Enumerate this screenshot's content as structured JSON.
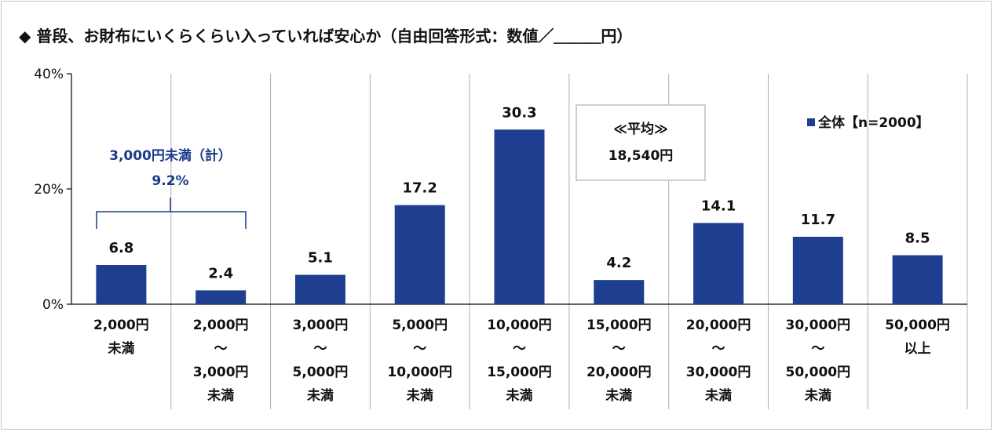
{
  "chart_data": {
    "type": "bar",
    "title": "◆ 普段、お財布にいくらくらい入っていれば安心か（自由回答形式：数値／＿＿＿円）",
    "categories": [
      [
        "2,000円",
        "未満"
      ],
      [
        "2,000円",
        "～",
        "3,000円",
        "未満"
      ],
      [
        "3,000円",
        "～",
        "5,000円",
        "未満"
      ],
      [
        "5,000円",
        "～",
        "10,000円",
        "未満"
      ],
      [
        "10,000円",
        "～",
        "15,000円",
        "未満"
      ],
      [
        "15,000円",
        "～",
        "20,000円",
        "未満"
      ],
      [
        "20,000円",
        "～",
        "30,000円",
        "未満"
      ],
      [
        "30,000円",
        "～",
        "50,000円",
        "未満"
      ],
      [
        "50,000円",
        "以上"
      ]
    ],
    "series": [
      {
        "name": "全体【n=2000】",
        "values": [
          6.8,
          2.4,
          5.1,
          17.2,
          30.3,
          4.2,
          14.1,
          11.7,
          8.5
        ],
        "color": "#1e3f8f"
      }
    ],
    "value_labels": [
      "6.8",
      "2.4",
      "5.1",
      "17.2",
      "30.3",
      "4.2",
      "14.1",
      "11.7",
      "8.5"
    ],
    "ylim": [
      0,
      40
    ],
    "yticks": [
      0,
      20,
      40
    ],
    "ytick_labels": [
      "0%",
      "20%",
      "40%"
    ],
    "xlabel": "",
    "ylabel": "",
    "grid": false,
    "legend": {
      "text": "全体【n=2000】",
      "placement": "top-right"
    },
    "annotations": {
      "bracket_label_line1": "3,000円未満（計）",
      "bracket_label_line2": "9.2%",
      "average_line1": "≪平均≫",
      "average_line2": "18,540円"
    },
    "colors": {
      "bar": "#1e3f8f",
      "annotation": "#1a3a8a",
      "separator": "#b0b0b0",
      "axis": "#333333"
    }
  }
}
